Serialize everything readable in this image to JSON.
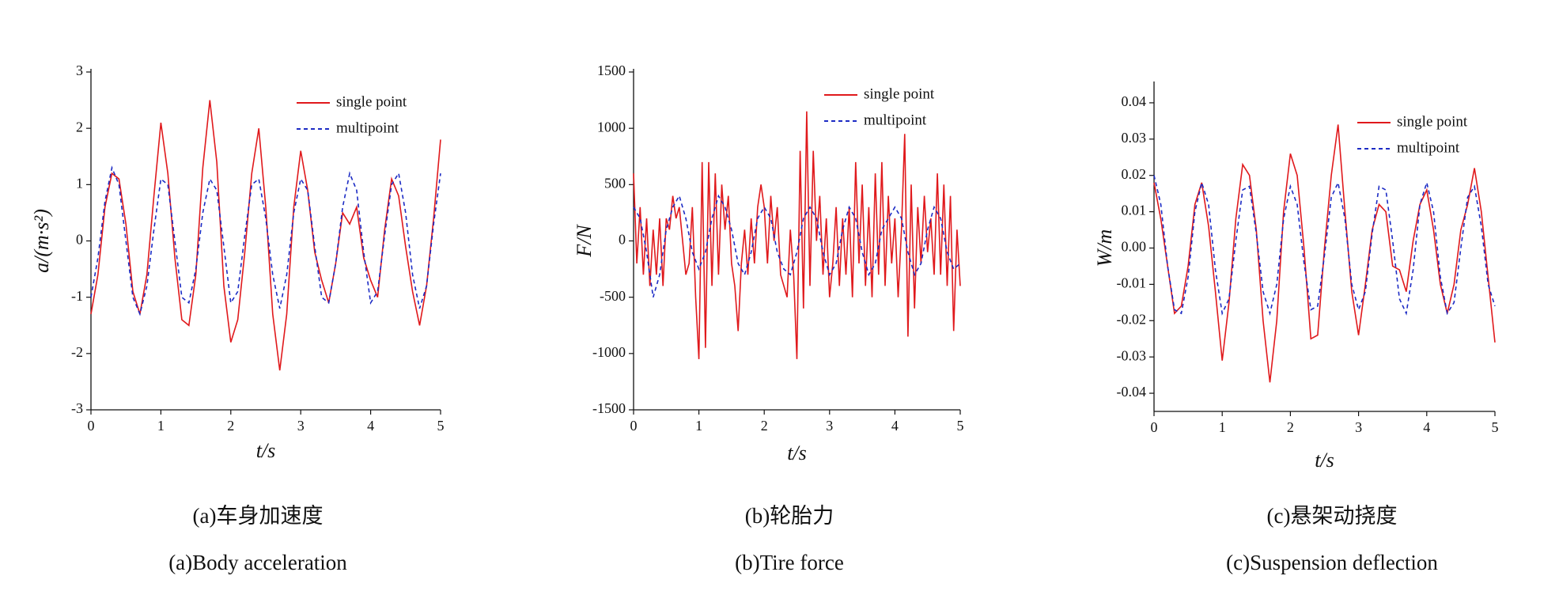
{
  "chart_data": [
    {
      "type": "line",
      "ylabel": "a/(m·s²)",
      "xlabel": "t/s",
      "caption_zh": "(a)车身加速度",
      "caption_en": "(a)Body acceleration",
      "xlim": [
        0,
        5
      ],
      "xticks": [
        0,
        1,
        2,
        3,
        4,
        5
      ],
      "ylim": [
        -3,
        3
      ],
      "yticks": [
        3,
        2,
        1,
        0,
        -1,
        -2,
        -3
      ],
      "series": [
        {
          "name": "single point",
          "color": "#e0191c",
          "linestyle": "solid",
          "x": [
            0,
            0.1,
            0.2,
            0.3,
            0.4,
            0.5,
            0.6,
            0.7,
            0.8,
            0.9,
            1,
            1.1,
            1.2,
            1.3,
            1.4,
            1.5,
            1.6,
            1.7,
            1.8,
            1.9,
            2,
            2.1,
            2.2,
            2.3,
            2.4,
            2.5,
            2.6,
            2.7,
            2.8,
            2.9,
            3,
            3.1,
            3.2,
            3.3,
            3.4,
            3.5,
            3.6,
            3.7,
            3.8,
            3.9,
            4,
            4.1,
            4.2,
            4.3,
            4.4,
            4.5,
            4.6,
            4.7,
            4.8,
            4.9,
            5
          ],
          "values": [
            -1.3,
            -0.6,
            0.6,
            1.2,
            1.1,
            0.3,
            -0.9,
            -1.3,
            -0.6,
            0.8,
            2.1,
            1.2,
            -0.3,
            -1.4,
            -1.5,
            -0.6,
            1.3,
            2.5,
            1.4,
            -0.8,
            -1.8,
            -1.4,
            -0.2,
            1.2,
            2.0,
            0.6,
            -1.3,
            -2.3,
            -1.3,
            0.6,
            1.6,
            0.9,
            -0.2,
            -0.7,
            -1.1,
            -0.4,
            0.5,
            0.3,
            0.6,
            -0.3,
            -0.7,
            -1.0,
            0.2,
            1.1,
            0.8,
            -0.1,
            -0.9,
            -1.5,
            -0.8,
            0.4,
            1.8
          ]
        },
        {
          "name": "multipoint",
          "color": "#1c2bc4",
          "linestyle": "dashed",
          "x": [
            0,
            0.1,
            0.2,
            0.3,
            0.4,
            0.5,
            0.6,
            0.7,
            0.8,
            0.9,
            1,
            1.1,
            1.2,
            1.3,
            1.4,
            1.5,
            1.6,
            1.7,
            1.8,
            1.9,
            2,
            2.1,
            2.2,
            2.3,
            2.4,
            2.5,
            2.6,
            2.7,
            2.8,
            2.9,
            3,
            3.1,
            3.2,
            3.3,
            3.4,
            3.5,
            3.6,
            3.7,
            3.8,
            3.9,
            4,
            4.1,
            4.2,
            4.3,
            4.4,
            4.5,
            4.6,
            4.7,
            4.8,
            4.9,
            5
          ],
          "values": [
            -1.0,
            -0.3,
            0.7,
            1.3,
            1.0,
            0.0,
            -1.0,
            -1.3,
            -0.8,
            0.2,
            1.1,
            1.0,
            0.0,
            -1.0,
            -1.1,
            -0.5,
            0.5,
            1.1,
            0.9,
            -0.1,
            -1.1,
            -0.9,
            0.1,
            1.0,
            1.1,
            0.4,
            -0.6,
            -1.2,
            -0.6,
            0.5,
            1.1,
            0.9,
            -0.1,
            -1.0,
            -1.1,
            -0.4,
            0.6,
            1.2,
            0.9,
            -0.2,
            -1.1,
            -0.9,
            0.1,
            1.0,
            1.2,
            0.5,
            -0.6,
            -1.2,
            -0.8,
            0.3,
            1.2
          ]
        }
      ]
    },
    {
      "type": "line",
      "ylabel": "F/N",
      "xlabel": "t/s",
      "caption_zh": "(b)轮胎力",
      "caption_en": "(b)Tire force",
      "xlim": [
        0,
        5
      ],
      "xticks": [
        0,
        1,
        2,
        3,
        4,
        5
      ],
      "ylim": [
        -1500,
        1500
      ],
      "yticks": [
        1500,
        1000,
        500,
        0,
        -500,
        -1000,
        -1500
      ],
      "series": [
        {
          "name": "single point",
          "color": "#e0191c",
          "linestyle": "solid",
          "x": [
            0,
            0.05,
            0.1,
            0.15,
            0.2,
            0.25,
            0.3,
            0.35,
            0.4,
            0.45,
            0.5,
            0.55,
            0.6,
            0.65,
            0.7,
            0.75,
            0.8,
            0.85,
            0.9,
            0.95,
            1,
            1.05,
            1.1,
            1.15,
            1.2,
            1.25,
            1.3,
            1.35,
            1.4,
            1.45,
            1.5,
            1.55,
            1.6,
            1.65,
            1.7,
            1.75,
            1.8,
            1.85,
            1.9,
            1.95,
            2,
            2.05,
            2.1,
            2.15,
            2.2,
            2.25,
            2.3,
            2.35,
            2.4,
            2.45,
            2.5,
            2.55,
            2.6,
            2.65,
            2.7,
            2.75,
            2.8,
            2.85,
            2.9,
            2.95,
            3,
            3.05,
            3.1,
            3.15,
            3.2,
            3.25,
            3.3,
            3.35,
            3.4,
            3.45,
            3.5,
            3.55,
            3.6,
            3.65,
            3.7,
            3.75,
            3.8,
            3.85,
            3.9,
            3.95,
            4,
            4.05,
            4.1,
            4.15,
            4.2,
            4.25,
            4.3,
            4.35,
            4.4,
            4.45,
            4.5,
            4.55,
            4.6,
            4.65,
            4.7,
            4.75,
            4.8,
            4.85,
            4.9,
            4.95,
            5
          ],
          "values": [
            600,
            -200,
            300,
            -300,
            200,
            -400,
            100,
            -300,
            200,
            -400,
            200,
            100,
            400,
            200,
            300,
            0,
            -300,
            -200,
            300,
            -500,
            -1050,
            700,
            -950,
            700,
            -400,
            600,
            -300,
            500,
            100,
            400,
            -200,
            -400,
            -800,
            -200,
            100,
            -300,
            200,
            -200,
            300,
            500,
            300,
            -200,
            400,
            0,
            300,
            -300,
            -400,
            -500,
            100,
            -300,
            -1050,
            800,
            -600,
            1150,
            -400,
            800,
            0,
            400,
            -300,
            200,
            -500,
            -200,
            300,
            -400,
            200,
            -300,
            300,
            -500,
            700,
            -200,
            500,
            -400,
            300,
            -500,
            600,
            -300,
            700,
            -400,
            400,
            -200,
            200,
            -500,
            100,
            950,
            -850,
            500,
            -600,
            300,
            -200,
            400,
            -100,
            200,
            -300,
            600,
            -300,
            500,
            -400,
            400,
            -800,
            100,
            -400
          ]
        },
        {
          "name": "multipoint",
          "color": "#1c2bc4",
          "linestyle": "dashed",
          "x": [
            0,
            0.1,
            0.2,
            0.3,
            0.4,
            0.5,
            0.6,
            0.7,
            0.8,
            0.9,
            1,
            1.1,
            1.2,
            1.3,
            1.4,
            1.5,
            1.6,
            1.7,
            1.8,
            1.9,
            2,
            2.1,
            2.2,
            2.3,
            2.4,
            2.5,
            2.6,
            2.7,
            2.8,
            2.9,
            3,
            3.1,
            3.2,
            3.3,
            3.4,
            3.5,
            3.6,
            3.7,
            3.8,
            3.9,
            4,
            4.1,
            4.2,
            4.3,
            4.4,
            4.5,
            4.6,
            4.7,
            4.8,
            4.9,
            5
          ],
          "values": [
            300,
            200,
            -100,
            -500,
            -300,
            100,
            300,
            400,
            200,
            -100,
            -250,
            -100,
            200,
            400,
            300,
            100,
            -200,
            -300,
            -100,
            200,
            300,
            200,
            -100,
            -250,
            -300,
            -100,
            200,
            300,
            200,
            -100,
            -300,
            -200,
            100,
            300,
            200,
            -100,
            -300,
            -200,
            100,
            200,
            300,
            200,
            -100,
            -300,
            -200,
            100,
            300,
            200,
            -100,
            -250,
            -200
          ]
        }
      ]
    },
    {
      "type": "line",
      "ylabel": "W/m",
      "xlabel": "t/s",
      "caption_zh": "(c)悬架动挠度",
      "caption_en": "(c)Suspension deflection",
      "xlim": [
        0,
        5
      ],
      "xticks": [
        0,
        1,
        2,
        3,
        4,
        5
      ],
      "ylim": [
        -0.045,
        0.045
      ],
      "yticks": [
        0.04,
        0.03,
        0.02,
        0.01,
        {
          "value": 0,
          "label": "0.00"
        },
        -0.01,
        -0.02,
        -0.03,
        -0.04
      ],
      "series": [
        {
          "name": "single point",
          "color": "#e0191c",
          "linestyle": "solid",
          "x": [
            0,
            0.1,
            0.2,
            0.3,
            0.4,
            0.5,
            0.6,
            0.7,
            0.8,
            0.9,
            1,
            1.1,
            1.2,
            1.3,
            1.4,
            1.5,
            1.6,
            1.7,
            1.8,
            1.9,
            2,
            2.1,
            2.2,
            2.3,
            2.4,
            2.5,
            2.6,
            2.7,
            2.8,
            2.9,
            3,
            3.1,
            3.2,
            3.3,
            3.4,
            3.5,
            3.6,
            3.7,
            3.8,
            3.9,
            4,
            4.1,
            4.2,
            4.3,
            4.4,
            4.5,
            4.6,
            4.7,
            4.8,
            4.9,
            5
          ],
          "values": [
            0.018,
            0.008,
            -0.005,
            -0.018,
            -0.016,
            -0.005,
            0.012,
            0.018,
            0.006,
            -0.012,
            -0.031,
            -0.015,
            0.008,
            0.023,
            0.02,
            0.005,
            -0.02,
            -0.037,
            -0.02,
            0.01,
            0.026,
            0.02,
            0.0,
            -0.025,
            -0.024,
            0.0,
            0.02,
            0.034,
            0.01,
            -0.012,
            -0.024,
            -0.01,
            0.005,
            0.012,
            0.01,
            -0.005,
            -0.006,
            -0.012,
            0.002,
            0.012,
            0.016,
            0.005,
            -0.01,
            -0.018,
            -0.01,
            0.005,
            0.012,
            0.022,
            0.01,
            -0.008,
            -0.026
          ]
        },
        {
          "name": "multipoint",
          "color": "#1c2bc4",
          "linestyle": "dashed",
          "x": [
            0,
            0.1,
            0.2,
            0.3,
            0.4,
            0.5,
            0.6,
            0.7,
            0.8,
            0.9,
            1,
            1.1,
            1.2,
            1.3,
            1.4,
            1.5,
            1.6,
            1.7,
            1.8,
            1.9,
            2,
            2.1,
            2.2,
            2.3,
            2.4,
            2.5,
            2.6,
            2.7,
            2.8,
            2.9,
            3,
            3.1,
            3.2,
            3.3,
            3.4,
            3.5,
            3.6,
            3.7,
            3.8,
            3.9,
            4,
            4.1,
            4.2,
            4.3,
            4.4,
            4.5,
            4.6,
            4.7,
            4.8,
            4.9,
            5
          ],
          "values": [
            0.02,
            0.012,
            -0.005,
            -0.017,
            -0.018,
            -0.008,
            0.01,
            0.018,
            0.012,
            -0.006,
            -0.018,
            -0.014,
            0.002,
            0.016,
            0.017,
            0.004,
            -0.012,
            -0.018,
            -0.01,
            0.008,
            0.017,
            0.012,
            -0.004,
            -0.017,
            -0.016,
            -0.002,
            0.014,
            0.018,
            0.008,
            -0.01,
            -0.017,
            -0.012,
            0.004,
            0.017,
            0.016,
            0.002,
            -0.014,
            -0.018,
            -0.006,
            0.012,
            0.018,
            0.01,
            -0.008,
            -0.018,
            -0.015,
            0.0,
            0.014,
            0.017,
            0.006,
            -0.01,
            -0.016
          ]
        }
      ]
    }
  ]
}
